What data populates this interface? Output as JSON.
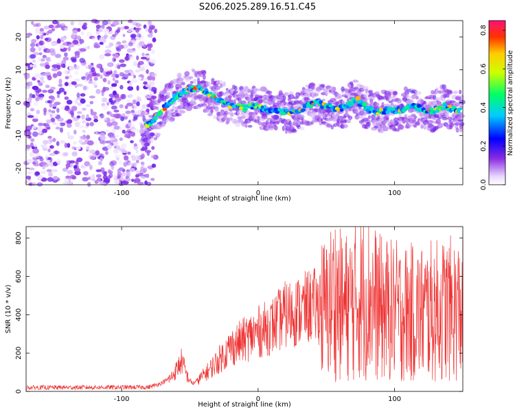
{
  "title": "S206.2025.289.16.51.C45",
  "chart_data": [
    {
      "type": "heatmap",
      "xlabel": "Height of straight line (km)",
      "ylabel": "Frequency (Hz)",
      "xlim": [
        -170,
        150
      ],
      "ylim": [
        -25,
        25
      ],
      "x_ticks": [
        -100,
        0,
        100
      ],
      "y_ticks": [
        -20,
        -10,
        0,
        10,
        20
      ],
      "colorbar": {
        "label": "Normalized spectral amplitude",
        "range": [
          0,
          0.85
        ],
        "ticks": [
          "0.0",
          "0.2",
          "0.4",
          "0.6",
          "0.8"
        ]
      },
      "ridge": {
        "x": [
          -82,
          -75,
          -70,
          -62,
          -56,
          -50,
          -44,
          -38,
          -32,
          -25,
          -18,
          -10,
          -2,
          5,
          12,
          20,
          28,
          35,
          42,
          50,
          58,
          65,
          72,
          80,
          88,
          96,
          104,
          112,
          120,
          128,
          136,
          145
        ],
        "y": [
          -7,
          -5,
          -2,
          1,
          3,
          4,
          4.5,
          3,
          1.5,
          0,
          -1,
          -1.5,
          -1,
          -2,
          -2.5,
          -3,
          -3,
          -1,
          0,
          -1,
          -2,
          -1,
          1,
          -2,
          -3,
          -2,
          -2.5,
          -1,
          -2,
          -2.5,
          -1,
          -2.5
        ]
      }
    },
    {
      "type": "line",
      "xlabel": "Height of straight line (km)",
      "ylabel": "SNR (10 * v/v)",
      "xlim": [
        -170,
        150
      ],
      "ylim": [
        0,
        860
      ],
      "x_ticks": [
        -100,
        0,
        100
      ],
      "y_ticks": [
        0,
        200,
        400,
        600,
        800
      ],
      "color": "#ee3333",
      "envelope": {
        "x": [
          -170,
          -80,
          -72,
          -64,
          -60,
          -56,
          -52,
          -48,
          -44,
          -36,
          -28,
          -20,
          -10,
          0,
          10,
          20,
          30,
          40,
          50,
          56,
          62,
          70,
          80,
          90,
          100,
          110,
          120,
          130,
          140,
          150
        ],
        "y": [
          20,
          22,
          40,
          70,
          110,
          160,
          80,
          40,
          60,
          110,
          170,
          230,
          270,
          310,
          340,
          400,
          420,
          450,
          420,
          500,
          430,
          470,
          500,
          430,
          420,
          410,
          410,
          420,
          430,
          420
        ]
      }
    }
  ]
}
